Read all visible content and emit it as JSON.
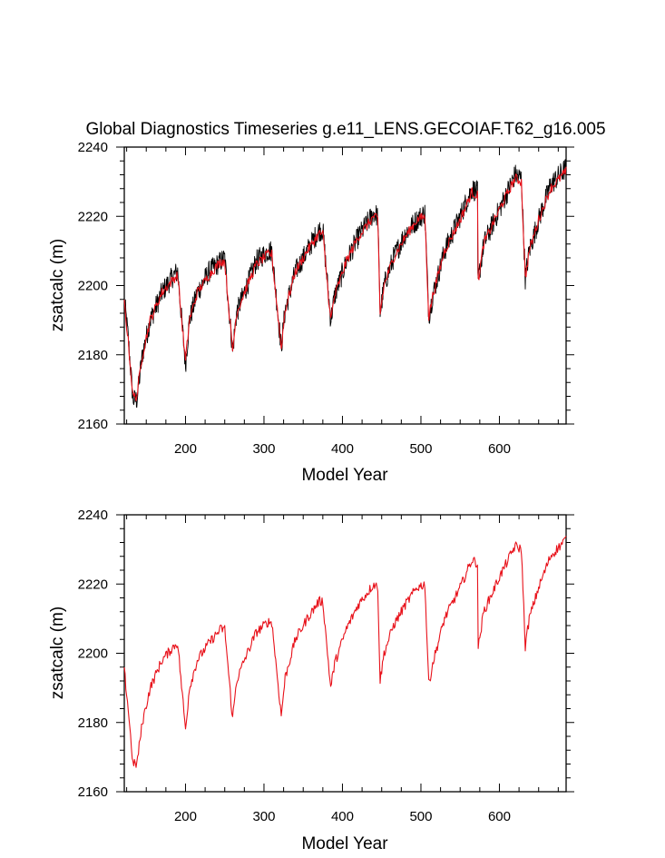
{
  "title": "Global Diagnostics Timeseries g.e11_LENS.GECOIAF.T62_g16.005",
  "colors": {
    "raw": "#000000",
    "smooth": "#e8111a"
  },
  "chart_data": [
    {
      "type": "line",
      "panel": "top",
      "title": "Global Diagnostics Timeseries g.e11_LENS.GECOIAF.T62_g16.005",
      "xlabel": "Model Year",
      "ylabel": "zsatcalc (m)",
      "xlim": [
        122,
        685
      ],
      "ylim": [
        2160,
        2240
      ],
      "xticks": [
        200,
        300,
        400,
        500,
        600
      ],
      "xtick_labels": [
        "200",
        "300",
        "400",
        "500",
        "600"
      ],
      "yticks": [
        2160,
        2180,
        2200,
        2220,
        2240
      ],
      "ytick_labels": [
        "2160",
        "2180",
        "2200",
        "2220",
        "2240"
      ],
      "grid": false,
      "series": [
        {
          "color": "#000000",
          "style": "annual (noisy)",
          "x": [
            122,
            127,
            133,
            138,
            145,
            155,
            170,
            185,
            190,
            200,
            205,
            215,
            230,
            245,
            250,
            260,
            265,
            275,
            290,
            305,
            310,
            322,
            327,
            340,
            355,
            370,
            375,
            385,
            390,
            405,
            420,
            440,
            445,
            448,
            453,
            465,
            480,
            495,
            505,
            510,
            515,
            530,
            550,
            565,
            572,
            572,
            580,
            600,
            620,
            628,
            633,
            638,
            650,
            665,
            685
          ],
          "y": [
            2196,
            2185,
            2167,
            2167,
            2180,
            2190,
            2198,
            2203,
            2204,
            2177,
            2190,
            2198,
            2204,
            2207,
            2208,
            2181,
            2192,
            2198,
            2207,
            2210,
            2210,
            2182,
            2193,
            2204,
            2210,
            2216,
            2216,
            2190,
            2197,
            2207,
            2214,
            2221,
            2220,
            2192,
            2200,
            2208,
            2215,
            2219,
            2221,
            2191,
            2197,
            2210,
            2220,
            2228,
            2227,
            2200,
            2212,
            2222,
            2232,
            2231,
            2202,
            2210,
            2219,
            2229,
            2234
          ]
        },
        {
          "color": "#e8111a",
          "style": "smoothed",
          "x": [
            122,
            127,
            133,
            138,
            145,
            155,
            170,
            185,
            190,
            200,
            205,
            215,
            230,
            245,
            250,
            260,
            265,
            275,
            290,
            305,
            310,
            322,
            327,
            340,
            355,
            370,
            375,
            385,
            390,
            405,
            420,
            440,
            445,
            448,
            453,
            465,
            480,
            495,
            505,
            510,
            515,
            530,
            550,
            565,
            572,
            572,
            580,
            600,
            620,
            628,
            633,
            638,
            650,
            665,
            685
          ],
          "y": [
            2195,
            2184,
            2168,
            2168,
            2180,
            2190,
            2198,
            2202,
            2203,
            2178,
            2190,
            2198,
            2203,
            2207,
            2207,
            2181,
            2192,
            2198,
            2206,
            2209,
            2209,
            2182,
            2193,
            2204,
            2210,
            2215,
            2215,
            2190,
            2197,
            2207,
            2214,
            2220,
            2219,
            2192,
            2200,
            2208,
            2214,
            2219,
            2220,
            2191,
            2197,
            2210,
            2219,
            2227,
            2226,
            2200,
            2212,
            2222,
            2231,
            2230,
            2202,
            2210,
            2219,
            2228,
            2233
          ]
        }
      ]
    },
    {
      "type": "line",
      "panel": "bottom",
      "xlabel": "Model Year",
      "ylabel": "zsatcalc (m)",
      "xlim": [
        122,
        685
      ],
      "ylim": [
        2160,
        2240
      ],
      "xticks": [
        200,
        300,
        400,
        500,
        600
      ],
      "xtick_labels": [
        "200",
        "300",
        "400",
        "500",
        "600"
      ],
      "yticks": [
        2160,
        2180,
        2200,
        2220,
        2240
      ],
      "ytick_labels": [
        "2160",
        "2180",
        "2200",
        "2220",
        "2240"
      ],
      "grid": false,
      "series": [
        {
          "color": "#e8111a",
          "style": "smoothed",
          "x": [
            122,
            127,
            133,
            138,
            145,
            155,
            170,
            185,
            190,
            200,
            205,
            215,
            230,
            245,
            250,
            260,
            265,
            275,
            290,
            305,
            310,
            322,
            327,
            340,
            355,
            370,
            375,
            385,
            390,
            405,
            420,
            440,
            445,
            448,
            453,
            465,
            480,
            495,
            505,
            510,
            515,
            530,
            550,
            565,
            572,
            572,
            580,
            600,
            620,
            628,
            633,
            638,
            650,
            665,
            685
          ],
          "y": [
            2195,
            2184,
            2168,
            2168,
            2180,
            2190,
            2198,
            2202,
            2203,
            2178,
            2190,
            2198,
            2203,
            2207,
            2207,
            2181,
            2192,
            2198,
            2206,
            2209,
            2209,
            2182,
            2193,
            2204,
            2210,
            2215,
            2215,
            2190,
            2197,
            2207,
            2214,
            2220,
            2219,
            2192,
            2200,
            2208,
            2214,
            2219,
            2220,
            2191,
            2197,
            2210,
            2219,
            2227,
            2226,
            2200,
            2212,
            2222,
            2231,
            2230,
            2202,
            2210,
            2219,
            2228,
            2233
          ]
        }
      ]
    }
  ]
}
